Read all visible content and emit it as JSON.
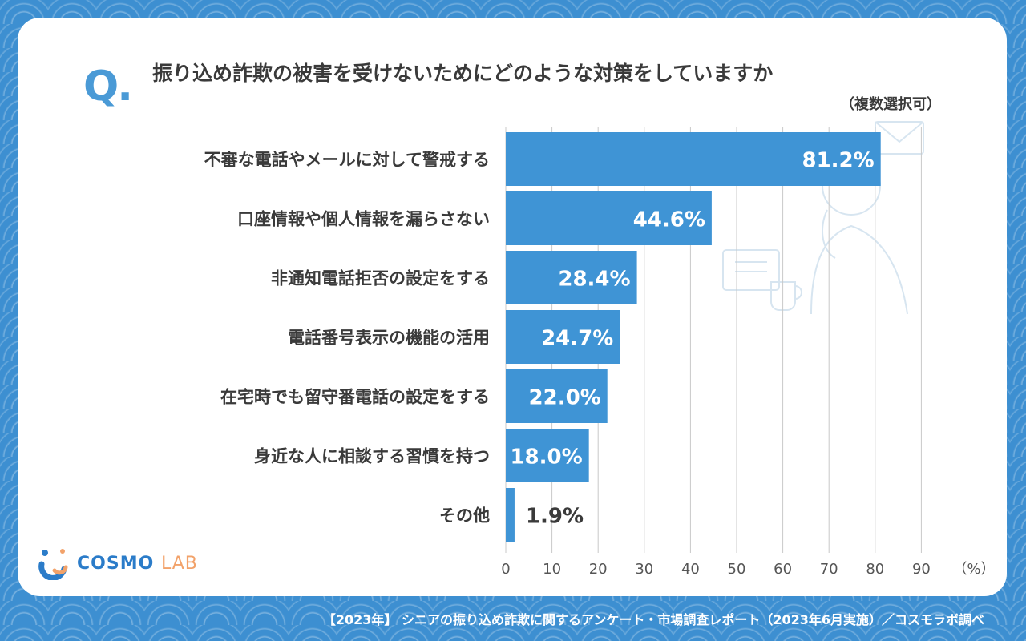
{
  "question_mark": "Q.",
  "title": "振り込め詐欺の被害を受けないためにどのような対策をしていますか",
  "subtitle": "（複数選択可）",
  "logo": {
    "main": "COSMO",
    "accent": "LAB"
  },
  "footer": "【2023年】 シニアの振り込め詐欺に関するアンケート・市場調査レポート（2023年6月実施）／コスモラボ調べ",
  "colors": {
    "bar": "#3f94d5",
    "grid": "#c9c9c9",
    "label_dark": "#3a3a3a",
    "label_light": "#ffffff"
  },
  "chart_data": {
    "type": "bar",
    "orientation": "horizontal",
    "categories": [
      "不審な電話やメールに対して警戒する",
      "口座情報や個人情報を漏らさない",
      "非通知電話拒否の設定をする",
      "電話番号表示の機能の活用",
      "在宅時でも留守番電話の設定をする",
      "身近な人に相談する習慣を持つ",
      "その他"
    ],
    "values": [
      81.2,
      44.6,
      28.4,
      24.7,
      22.0,
      18.0,
      1.9
    ],
    "value_labels": [
      "81.2%",
      "44.6%",
      "28.4%",
      "24.7%",
      "22.0%",
      "18.0%",
      "1.9%"
    ],
    "x_ticks": [
      "0",
      "10",
      "20",
      "30",
      "40",
      "50",
      "60",
      "70",
      "80",
      "90"
    ],
    "x_unit": "（%）",
    "xlim": [
      0,
      90
    ],
    "grid": true
  }
}
